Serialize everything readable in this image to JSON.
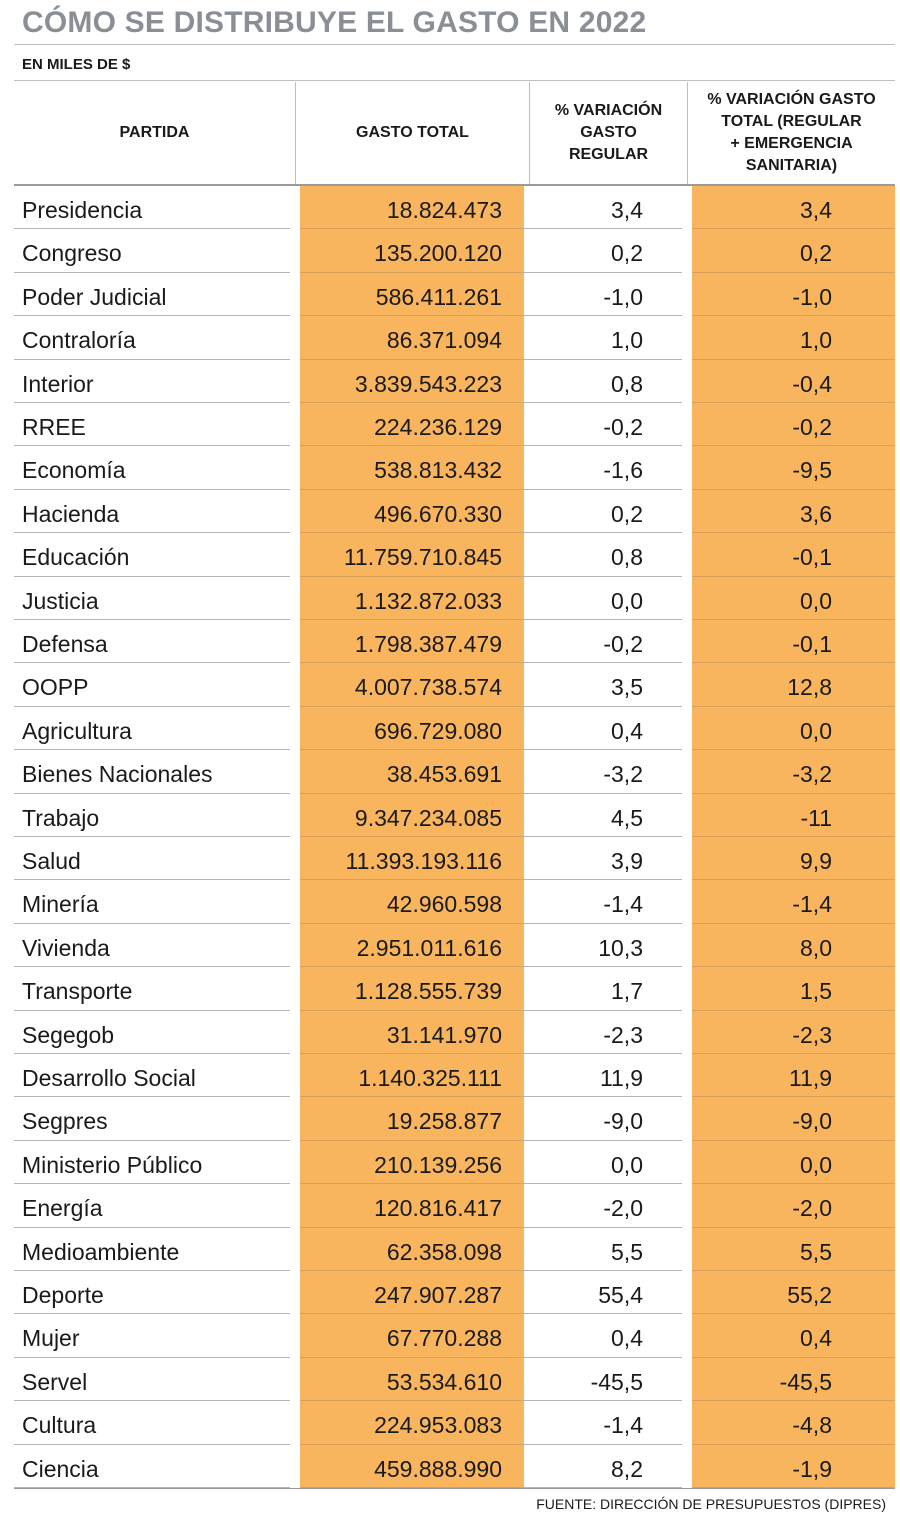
{
  "chart_data": {
    "type": "table",
    "title": "CÓMO SE DISTRIBUYE EL GASTO EN 2022",
    "subtitle": "EN MILES DE $",
    "source": "FUENTE: DIRECCIÓN DE PRESUPUESTOS (DIPRES)",
    "highlight_color": "#f8b55e",
    "columns": [
      {
        "lines": [
          "PARTIDA"
        ]
      },
      {
        "lines": [
          "GASTO TOTAL"
        ]
      },
      {
        "lines": [
          "% VARIACIÓN",
          "GASTO",
          "REGULAR"
        ]
      },
      {
        "lines": [
          "% VARIACIÓN GASTO",
          "TOTAL (REGULAR",
          "+ EMERGENCIA",
          "SANITARIA)"
        ]
      }
    ],
    "rows": [
      {
        "partida": "Presidencia",
        "gasto_total": "18.824.473",
        "var_regular": "3,4",
        "var_total": "3,4"
      },
      {
        "partida": "Congreso",
        "gasto_total": "135.200.120",
        "var_regular": "0,2",
        "var_total": "0,2"
      },
      {
        "partida": "Poder Judicial",
        "gasto_total": "586.411.261",
        "var_regular": "-1,0",
        "var_total": "-1,0"
      },
      {
        "partida": "Contraloría",
        "gasto_total": "86.371.094",
        "var_regular": "1,0",
        "var_total": "1,0"
      },
      {
        "partida": "Interior",
        "gasto_total": "3.839.543.223",
        "var_regular": "0,8",
        "var_total": "-0,4"
      },
      {
        "partida": "RREE",
        "gasto_total": "224.236.129",
        "var_regular": "-0,2",
        "var_total": "-0,2"
      },
      {
        "partida": "Economía",
        "gasto_total": "538.813.432",
        "var_regular": "-1,6",
        "var_total": "-9,5"
      },
      {
        "partida": "Hacienda",
        "gasto_total": "496.670.330",
        "var_regular": "0,2",
        "var_total": "3,6"
      },
      {
        "partida": "Educación",
        "gasto_total": "11.759.710.845",
        "var_regular": "0,8",
        "var_total": "-0,1"
      },
      {
        "partida": "Justicia",
        "gasto_total": "1.132.872.033",
        "var_regular": "0,0",
        "var_total": "0,0"
      },
      {
        "partida": "Defensa",
        "gasto_total": "1.798.387.479",
        "var_regular": "-0,2",
        "var_total": "-0,1"
      },
      {
        "partida": "OOPP",
        "gasto_total": "4.007.738.574",
        "var_regular": "3,5",
        "var_total": "12,8"
      },
      {
        "partida": "Agricultura",
        "gasto_total": "696.729.080",
        "var_regular": "0,4",
        "var_total": "0,0"
      },
      {
        "partida": "Bienes Nacionales",
        "gasto_total": "38.453.691",
        "var_regular": "-3,2",
        "var_total": "-3,2"
      },
      {
        "partida": "Trabajo",
        "gasto_total": "9.347.234.085",
        "var_regular": "4,5",
        "var_total": "-11"
      },
      {
        "partida": "Salud",
        "gasto_total": "11.393.193.116",
        "var_regular": "3,9",
        "var_total": "9,9"
      },
      {
        "partida": "Minería",
        "gasto_total": "42.960.598",
        "var_regular": "-1,4",
        "var_total": "-1,4"
      },
      {
        "partida": "Vivienda",
        "gasto_total": "2.951.011.616",
        "var_regular": "10,3",
        "var_total": "8,0"
      },
      {
        "partida": "Transporte",
        "gasto_total": "1.128.555.739",
        "var_regular": "1,7",
        "var_total": "1,5"
      },
      {
        "partida": "Segegob",
        "gasto_total": "31.141.970",
        "var_regular": "-2,3",
        "var_total": "-2,3"
      },
      {
        "partida": "Desarrollo Social",
        "gasto_total": "1.140.325.111",
        "var_regular": "11,9",
        "var_total": "11,9"
      },
      {
        "partida": "Segpres",
        "gasto_total": "19.258.877",
        "var_regular": "-9,0",
        "var_total": "-9,0"
      },
      {
        "partida": "Ministerio Público",
        "gasto_total": "210.139.256",
        "var_regular": "0,0",
        "var_total": "0,0"
      },
      {
        "partida": "Energía",
        "gasto_total": "120.816.417",
        "var_regular": "-2,0",
        "var_total": "-2,0"
      },
      {
        "partida": "Medioambiente",
        "gasto_total": "62.358.098",
        "var_regular": "5,5",
        "var_total": "5,5"
      },
      {
        "partida": "Deporte",
        "gasto_total": "247.907.287",
        "var_regular": "55,4",
        "var_total": "55,2"
      },
      {
        "partida": "Mujer",
        "gasto_total": "67.770.288",
        "var_regular": "0,4",
        "var_total": "0,4"
      },
      {
        "partida": "Servel",
        "gasto_total": "53.534.610",
        "var_regular": "-45,5",
        "var_total": "-45,5"
      },
      {
        "partida": "Cultura",
        "gasto_total": "224.953.083",
        "var_regular": "-1,4",
        "var_total": "-4,8"
      },
      {
        "partida": "Ciencia",
        "gasto_total": "459.888.990",
        "var_regular": "8,2",
        "var_total": "-1,9"
      }
    ]
  }
}
